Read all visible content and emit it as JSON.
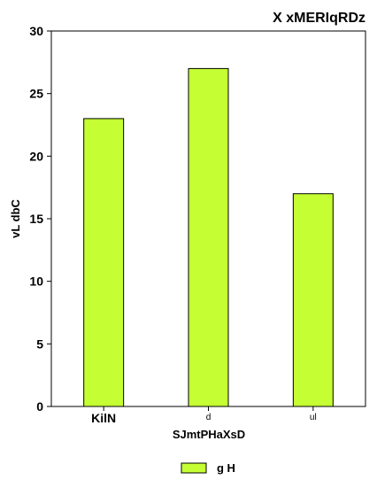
{
  "chart_data": {
    "type": "bar",
    "title": "X xMERIqRDz",
    "xlabel": "SJmtPHaXsD",
    "ylabel": "vL dbC",
    "categories": [
      "KilN",
      "d",
      "ul"
    ],
    "series": [
      {
        "name": "g H",
        "values": [
          23,
          27,
          17
        ],
        "color": "#c5ff33"
      }
    ],
    "ylim": [
      0,
      30
    ],
    "yticks": [
      0,
      5,
      10,
      15,
      20,
      25,
      30
    ],
    "grid": false,
    "legend_position": "bottom-center"
  }
}
